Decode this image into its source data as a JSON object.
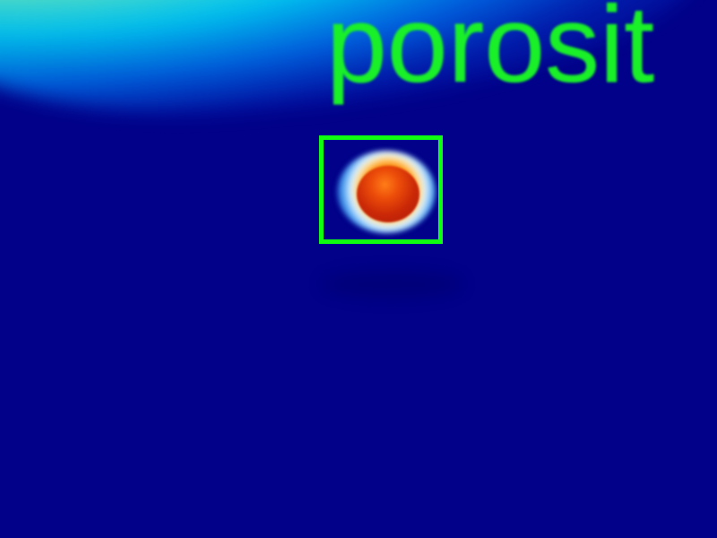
{
  "image": {
    "background_color": "#010189",
    "plume_colors": [
      "#ffff60",
      "#00e6ff",
      "#007df5"
    ],
    "detection": {
      "label": "porosit",
      "label_color": "#19f028",
      "box_color": "#10ff10"
    },
    "pore_colors": [
      "#ec4c09",
      "#ffe0a0",
      "#4a9df0"
    ]
  }
}
